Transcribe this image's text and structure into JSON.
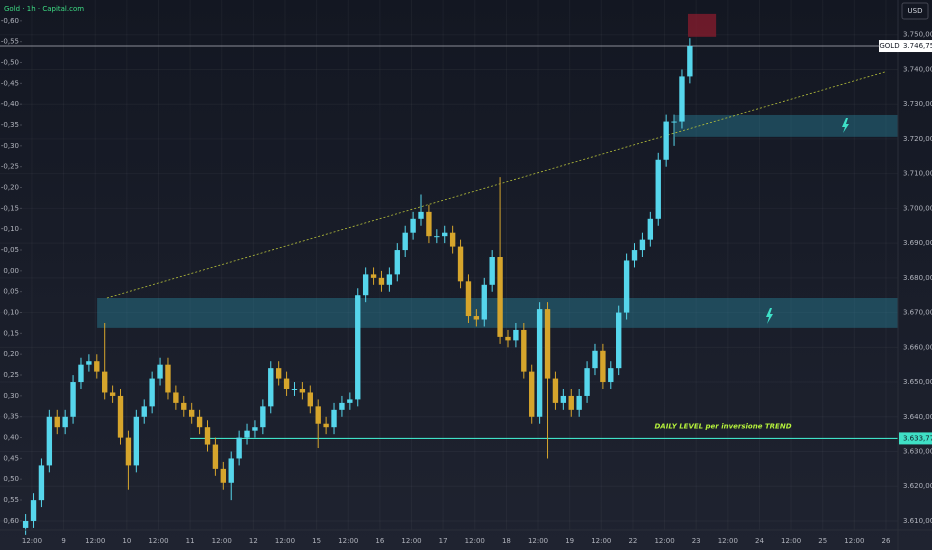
{
  "chart_data": {
    "type": "candlestick",
    "title": "Gold · 1h · Capital.com",
    "currency": "USD",
    "up_color": "#56d6ec",
    "down_color": "#d6a52c",
    "grid": true,
    "xlim": [
      -1.01,
      27.38
    ],
    "ylim": [
      3607.4,
      3760.0
    ],
    "y2lim": [
      0.622,
      -0.65
    ],
    "xticks": [
      {
        "value": 0,
        "label": "12:00"
      },
      {
        "value": 1,
        "label": "9"
      },
      {
        "value": 2,
        "label": "12:00"
      },
      {
        "value": 3,
        "label": "10"
      },
      {
        "value": 4,
        "label": "12:00"
      },
      {
        "value": 5,
        "label": "11"
      },
      {
        "value": 6,
        "label": "12:00"
      },
      {
        "value": 7,
        "label": "12"
      },
      {
        "value": 8,
        "label": "12:00"
      },
      {
        "value": 9,
        "label": "15"
      },
      {
        "value": 10,
        "label": "12:00"
      },
      {
        "value": 11,
        "label": "16"
      },
      {
        "value": 12,
        "label": "12:00"
      },
      {
        "value": 13,
        "label": "17"
      },
      {
        "value": 14,
        "label": "12:00"
      },
      {
        "value": 15,
        "label": "18"
      },
      {
        "value": 16,
        "label": "12:00"
      },
      {
        "value": 17,
        "label": "19"
      },
      {
        "value": 18,
        "label": "12:00"
      },
      {
        "value": 19,
        "label": "22"
      },
      {
        "value": 20,
        "label": "12:00"
      },
      {
        "value": 21,
        "label": "23"
      },
      {
        "value": 22,
        "label": "12:00"
      },
      {
        "value": 23,
        "label": "24"
      },
      {
        "value": 24,
        "label": "12:00"
      },
      {
        "value": 25,
        "label": "25"
      },
      {
        "value": 26,
        "label": "12:00"
      },
      {
        "value": 27,
        "label": "26"
      }
    ],
    "yticks": [
      {
        "value": 3610,
        "label": "3.610,00"
      },
      {
        "value": 3620,
        "label": "3.620,00"
      },
      {
        "value": 3630,
        "label": "3.630,00"
      },
      {
        "value": 3640,
        "label": "3.640,00"
      },
      {
        "value": 3650,
        "label": "3.650,00"
      },
      {
        "value": 3660,
        "label": "3.660,00"
      },
      {
        "value": 3670,
        "label": "3.670,00"
      },
      {
        "value": 3680,
        "label": "3.680,00"
      },
      {
        "value": 3690,
        "label": "3.690,00"
      },
      {
        "value": 3700,
        "label": "3.700,00"
      },
      {
        "value": 3710,
        "label": "3.710,00"
      },
      {
        "value": 3720,
        "label": "3.720,00"
      },
      {
        "value": 3730,
        "label": "3.730,00"
      },
      {
        "value": 3740,
        "label": "3.740,00"
      },
      {
        "value": 3750,
        "label": "3.750,00"
      }
    ],
    "y2ticks": [
      {
        "value": -0.6,
        "label": "-0,60"
      },
      {
        "value": -0.55,
        "label": "-0,55"
      },
      {
        "value": -0.5,
        "label": "-0,50"
      },
      {
        "value": -0.45,
        "label": "-0,45"
      },
      {
        "value": -0.4,
        "label": "-0,40"
      },
      {
        "value": -0.35,
        "label": "-0,35"
      },
      {
        "value": -0.3,
        "label": "-0,30"
      },
      {
        "value": -0.25,
        "label": "-0,25"
      },
      {
        "value": -0.2,
        "label": "-0,20"
      },
      {
        "value": -0.15,
        "label": "-0,15"
      },
      {
        "value": -0.1,
        "label": "-0,10"
      },
      {
        "value": -0.05,
        "label": "-0,05"
      },
      {
        "value": 0,
        "label": "0,00"
      },
      {
        "value": 0.05,
        "label": "0,05"
      },
      {
        "value": 0.1,
        "label": "0,10"
      },
      {
        "value": 0.15,
        "label": "0,15"
      },
      {
        "value": 0.2,
        "label": "0,20"
      },
      {
        "value": 0.25,
        "label": "0,25"
      },
      {
        "value": 0.3,
        "label": "0,30"
      },
      {
        "value": 0.35,
        "label": "0,35"
      },
      {
        "value": 0.4,
        "label": "0,40"
      },
      {
        "value": 0.45,
        "label": "0,45"
      },
      {
        "value": 0.5,
        "label": "0,50"
      },
      {
        "value": 0.55,
        "label": "0,55"
      },
      {
        "value": 0.6,
        "label": "0,60"
      }
    ],
    "x": [
      -0.2,
      0.05,
      0.3,
      0.55,
      0.8,
      1.05,
      1.3,
      1.55,
      1.8,
      2.05,
      2.3,
      2.55,
      2.8,
      3.05,
      3.3,
      3.55,
      3.8,
      4.05,
      4.3,
      4.55,
      4.8,
      5.05,
      5.3,
      5.55,
      5.8,
      6.05,
      6.3,
      6.55,
      6.8,
      7.05,
      7.3,
      7.55,
      7.8,
      8.05,
      8.3,
      8.55,
      8.8,
      9.05,
      9.3,
      9.55,
      9.8,
      10.05,
      10.3,
      10.55,
      10.8,
      11.05,
      11.3,
      11.55,
      11.8,
      12.05,
      12.3,
      12.55,
      12.8,
      13.05,
      13.3,
      13.55,
      13.8,
      14.05,
      14.3,
      14.55,
      14.8,
      15.05,
      15.3,
      15.55,
      15.8,
      16.05,
      16.3,
      16.55,
      16.8,
      17.05,
      17.3,
      17.55,
      17.8,
      18.05,
      18.3,
      18.55,
      18.8,
      19.05,
      19.3,
      19.55,
      19.8,
      20.05,
      20.3,
      20.55,
      20.8
    ],
    "open": [
      3608,
      3610,
      3616,
      3626,
      3640,
      3637,
      3640,
      3650,
      3655,
      3656,
      3653,
      3647,
      3646,
      3634,
      3626,
      3640,
      3643,
      3651,
      3655,
      3647,
      3644,
      3642,
      3640,
      3637,
      3632,
      3625,
      3621,
      3628,
      3634,
      3636,
      3637,
      3643,
      3654,
      3651,
      3648,
      3648,
      3647,
      3643,
      3638,
      3637,
      3642,
      3644,
      3645,
      3675,
      3681,
      3680,
      3678,
      3681,
      3688,
      3693,
      3697,
      3699,
      3692,
      3692,
      3693,
      3689,
      3679,
      3669,
      3668,
      3678,
      3686,
      3663,
      3662,
      3665,
      3653,
      3640,
      3671,
      3651,
      3644,
      3646,
      3642,
      3646,
      3654,
      3659,
      3650,
      3654,
      3670,
      3685,
      3688,
      3691,
      3697,
      3714,
      3725,
      3725,
      3738
    ],
    "high": [
      3612,
      3618,
      3628,
      3642,
      3642,
      3642,
      3652,
      3657,
      3658,
      3658,
      3667,
      3649,
      3648,
      3636,
      3642,
      3645,
      3653,
      3657,
      3657,
      3649,
      3646,
      3644,
      3642,
      3639,
      3634,
      3627,
      3630,
      3636,
      3638,
      3639,
      3645,
      3656,
      3656,
      3653,
      3650,
      3650,
      3649,
      3645,
      3640,
      3644,
      3646,
      3647,
      3677,
      3683,
      3683,
      3682,
      3683,
      3690,
      3695,
      3699,
      3704,
      3701,
      3694,
      3695,
      3695,
      3691,
      3681,
      3671,
      3680,
      3688,
      3709,
      3665,
      3667,
      3667,
      3655,
      3673,
      3673,
      3653,
      3648,
      3648,
      3648,
      3656,
      3661,
      3661,
      3656,
      3672,
      3687,
      3690,
      3693,
      3699,
      3716,
      3727,
      3727,
      3740,
      3749
    ],
    "low": [
      3606,
      3608,
      3614,
      3624,
      3635,
      3635,
      3638,
      3648,
      3653,
      3651,
      3645,
      3644,
      3632,
      3619,
      3624,
      3638,
      3641,
      3649,
      3645,
      3642,
      3640,
      3638,
      3635,
      3630,
      3623,
      3619,
      3616,
      3626,
      3632,
      3634,
      3635,
      3641,
      3649,
      3646,
      3646,
      3645,
      3641,
      3631,
      3635,
      3635,
      3640,
      3642,
      3643,
      3673,
      3678,
      3676,
      3676,
      3679,
      3686,
      3691,
      3695,
      3690,
      3690,
      3690,
      3687,
      3677,
      3667,
      3666,
      3666,
      3676,
      3661,
      3660,
      3660,
      3651,
      3638,
      3638,
      3628,
      3642,
      3642,
      3640,
      3640,
      3644,
      3652,
      3648,
      3648,
      3652,
      3668,
      3683,
      3686,
      3689,
      3695,
      3712,
      3718,
      3723,
      3736
    ],
    "close": [
      3610,
      3616,
      3626,
      3640,
      3637,
      3640,
      3650,
      3655,
      3656,
      3653,
      3647,
      3646,
      3634,
      3626,
      3640,
      3643,
      3651,
      3655,
      3647,
      3644,
      3642,
      3640,
      3637,
      3632,
      3625,
      3621,
      3628,
      3634,
      3636,
      3637,
      3643,
      3654,
      3651,
      3648,
      3648,
      3647,
      3643,
      3638,
      3637,
      3642,
      3644,
      3645,
      3675,
      3681,
      3680,
      3678,
      3681,
      3688,
      3693,
      3697,
      3699,
      3692,
      3692,
      3693,
      3689,
      3679,
      3669,
      3668,
      3678,
      3686,
      3663,
      3662,
      3665,
      3653,
      3640,
      3671,
      3651,
      3644,
      3646,
      3642,
      3646,
      3654,
      3659,
      3650,
      3654,
      3670,
      3685,
      3688,
      3691,
      3697,
      3714,
      3725,
      3725,
      3738,
      3746.75
    ],
    "price_line": {
      "name": "GOLD",
      "value": 3746.75,
      "label": "3.746,75"
    },
    "daily_level": {
      "text": "DAILY LEVEL per inversione TREND",
      "value": 3633.77,
      "label": "3.633,77",
      "x_start": 5.0
    },
    "zones": [
      {
        "x_start": 20.33,
        "y_range": [
          3720.6,
          3726.9
        ]
      },
      {
        "x_start": 2.06,
        "y_range": [
          3665.6,
          3674.2
        ]
      }
    ],
    "target_box": {
      "x_range": [
        20.74,
        21.63
      ],
      "y_range": [
        3749.4,
        3756.0
      ]
    },
    "trendline": {
      "x": [
        2.37,
        26.97
      ],
      "y": [
        3674.2,
        3739.3
      ]
    }
  }
}
